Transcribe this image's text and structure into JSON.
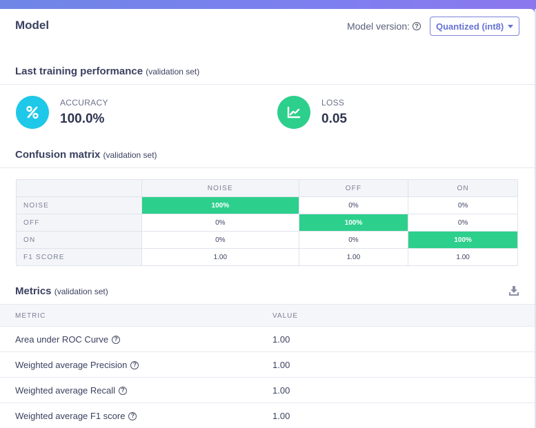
{
  "header": {
    "title": "Model",
    "version_label": "Model version:",
    "version_selected": "Quantized (int8)"
  },
  "training": {
    "title": "Last training performance",
    "subtitle": "(validation set)",
    "accuracy": {
      "label": "ACCURACY",
      "value": "100.0%",
      "icon": "percent-icon",
      "color": "#1ec8e8"
    },
    "loss": {
      "label": "LOSS",
      "value": "0.05",
      "icon": "chart-line-icon",
      "color": "#2dcf8c"
    }
  },
  "confusion": {
    "title": "Confusion matrix",
    "subtitle": "(validation set)",
    "columns": [
      "NOISE",
      "OFF",
      "ON"
    ],
    "rows": [
      {
        "label": "NOISE",
        "cells": [
          "100%",
          "0%",
          "0%"
        ]
      },
      {
        "label": "OFF",
        "cells": [
          "0%",
          "100%",
          "0%"
        ]
      },
      {
        "label": "ON",
        "cells": [
          "0%",
          "0%",
          "100%"
        ]
      },
      {
        "label": "F1 SCORE",
        "cells": [
          "1.00",
          "1.00",
          "1.00"
        ]
      }
    ],
    "highlight_color": "#2dcf8c"
  },
  "metrics": {
    "title": "Metrics",
    "subtitle": "(validation set)",
    "col_metric": "METRIC",
    "col_value": "VALUE",
    "rows": [
      {
        "name": "Area under ROC Curve",
        "value": "1.00"
      },
      {
        "name": "Weighted average Precision",
        "value": "1.00"
      },
      {
        "name": "Weighted average Recall",
        "value": "1.00"
      },
      {
        "name": "Weighted average F1 score",
        "value": "1.00"
      }
    ]
  }
}
